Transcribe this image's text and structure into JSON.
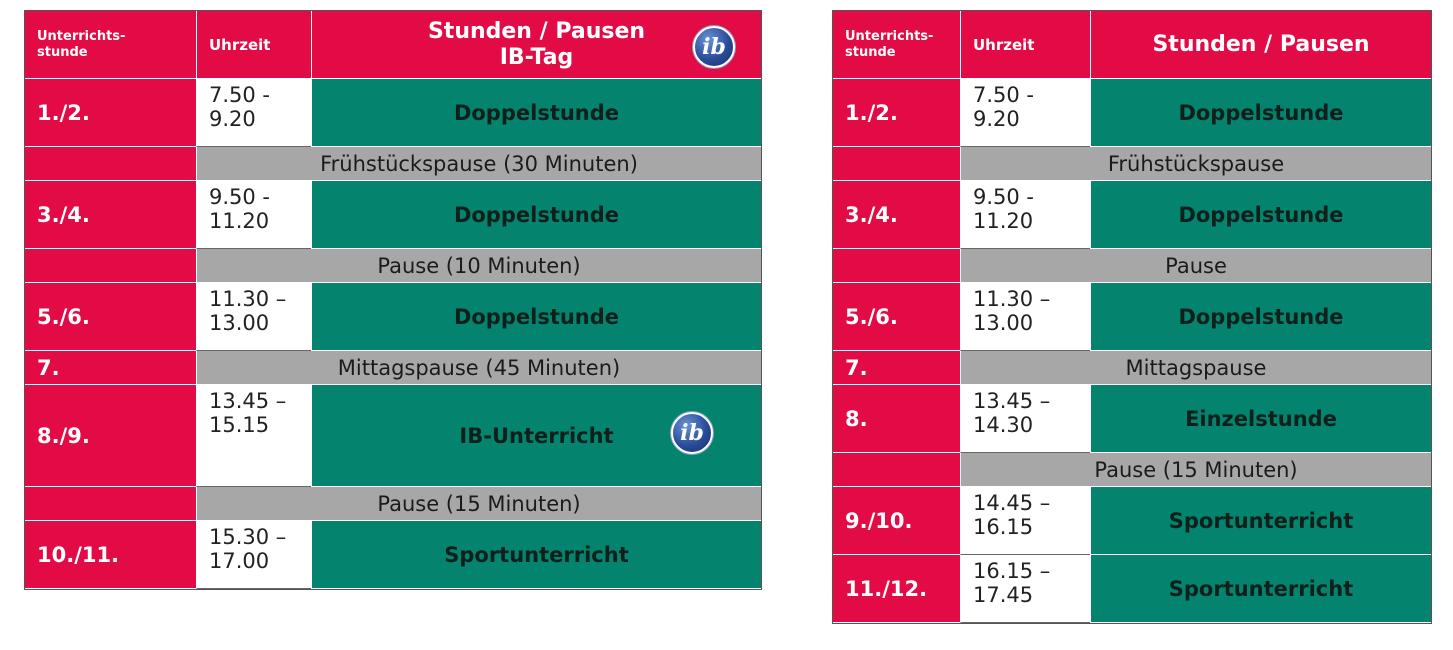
{
  "left_table": {
    "headers": {
      "period": "Unterrichts-\nstunde",
      "time": "Uhrzeit",
      "title_line1": "Stunden / Pausen",
      "title_line2": "IB-Tag"
    },
    "logo_text": "ib",
    "rows": [
      {
        "type": "lesson",
        "period": "1./2.",
        "time": "7.50 -\n9.20",
        "label": "Doppelstunde"
      },
      {
        "type": "break",
        "period": "",
        "label": "Frühstückspause (30 Minuten)"
      },
      {
        "type": "lesson",
        "period": "3./4.",
        "time": "9.50 -\n11.20",
        "label": "Doppelstunde"
      },
      {
        "type": "break",
        "period": "",
        "label": "Pause (10 Minuten)"
      },
      {
        "type": "lesson",
        "period": "5./6.",
        "time": "11.30 –\n13.00",
        "label": "Doppelstunde"
      },
      {
        "type": "break",
        "period": "7.",
        "label": "Mittagspause (45 Minuten)"
      },
      {
        "type": "lesson",
        "period": "8./9.",
        "time": "13.45 –\n15.15",
        "label": "IB-Unterricht"
      },
      {
        "type": "break",
        "period": "",
        "label": "Pause (15 Minuten)"
      },
      {
        "type": "lesson",
        "period": "10./11.",
        "time": "15.30 –\n17.00",
        "label": "Sportunterricht"
      }
    ]
  },
  "right_table": {
    "headers": {
      "period": "Unterrichts-\nstunde",
      "time": "Uhrzeit",
      "title": "Stunden / Pausen"
    },
    "rows": [
      {
        "type": "lesson",
        "period": "1./2.",
        "time": "7.50 -\n9.20",
        "label": "Doppelstunde"
      },
      {
        "type": "break",
        "period": "",
        "label": "Frühstückspause"
      },
      {
        "type": "lesson",
        "period": "3./4.",
        "time": "9.50 -\n11.20",
        "label": "Doppelstunde"
      },
      {
        "type": "break",
        "period": "",
        "label": "Pause"
      },
      {
        "type": "lesson",
        "period": "5./6.",
        "time": "11.30 –\n13.00",
        "label": "Doppelstunde"
      },
      {
        "type": "break",
        "period": "7.",
        "label": "Mittagspause"
      },
      {
        "type": "lesson",
        "period": "8.",
        "time": "13.45 –\n14.30",
        "label": "Einzelstunde"
      },
      {
        "type": "break",
        "period": "",
        "label": "Pause (15 Minuten)"
      },
      {
        "type": "lesson",
        "period": "9./10.",
        "time": "14.45 –\n16.15",
        "label": "Sportunterricht"
      },
      {
        "type": "lesson",
        "period": "11./12.",
        "time": "16.15 –\n17.45",
        "label": "Sportunterricht"
      }
    ]
  },
  "colors": {
    "red": "#e30b45",
    "green": "#04846f",
    "gray": "#a7a7a7"
  }
}
